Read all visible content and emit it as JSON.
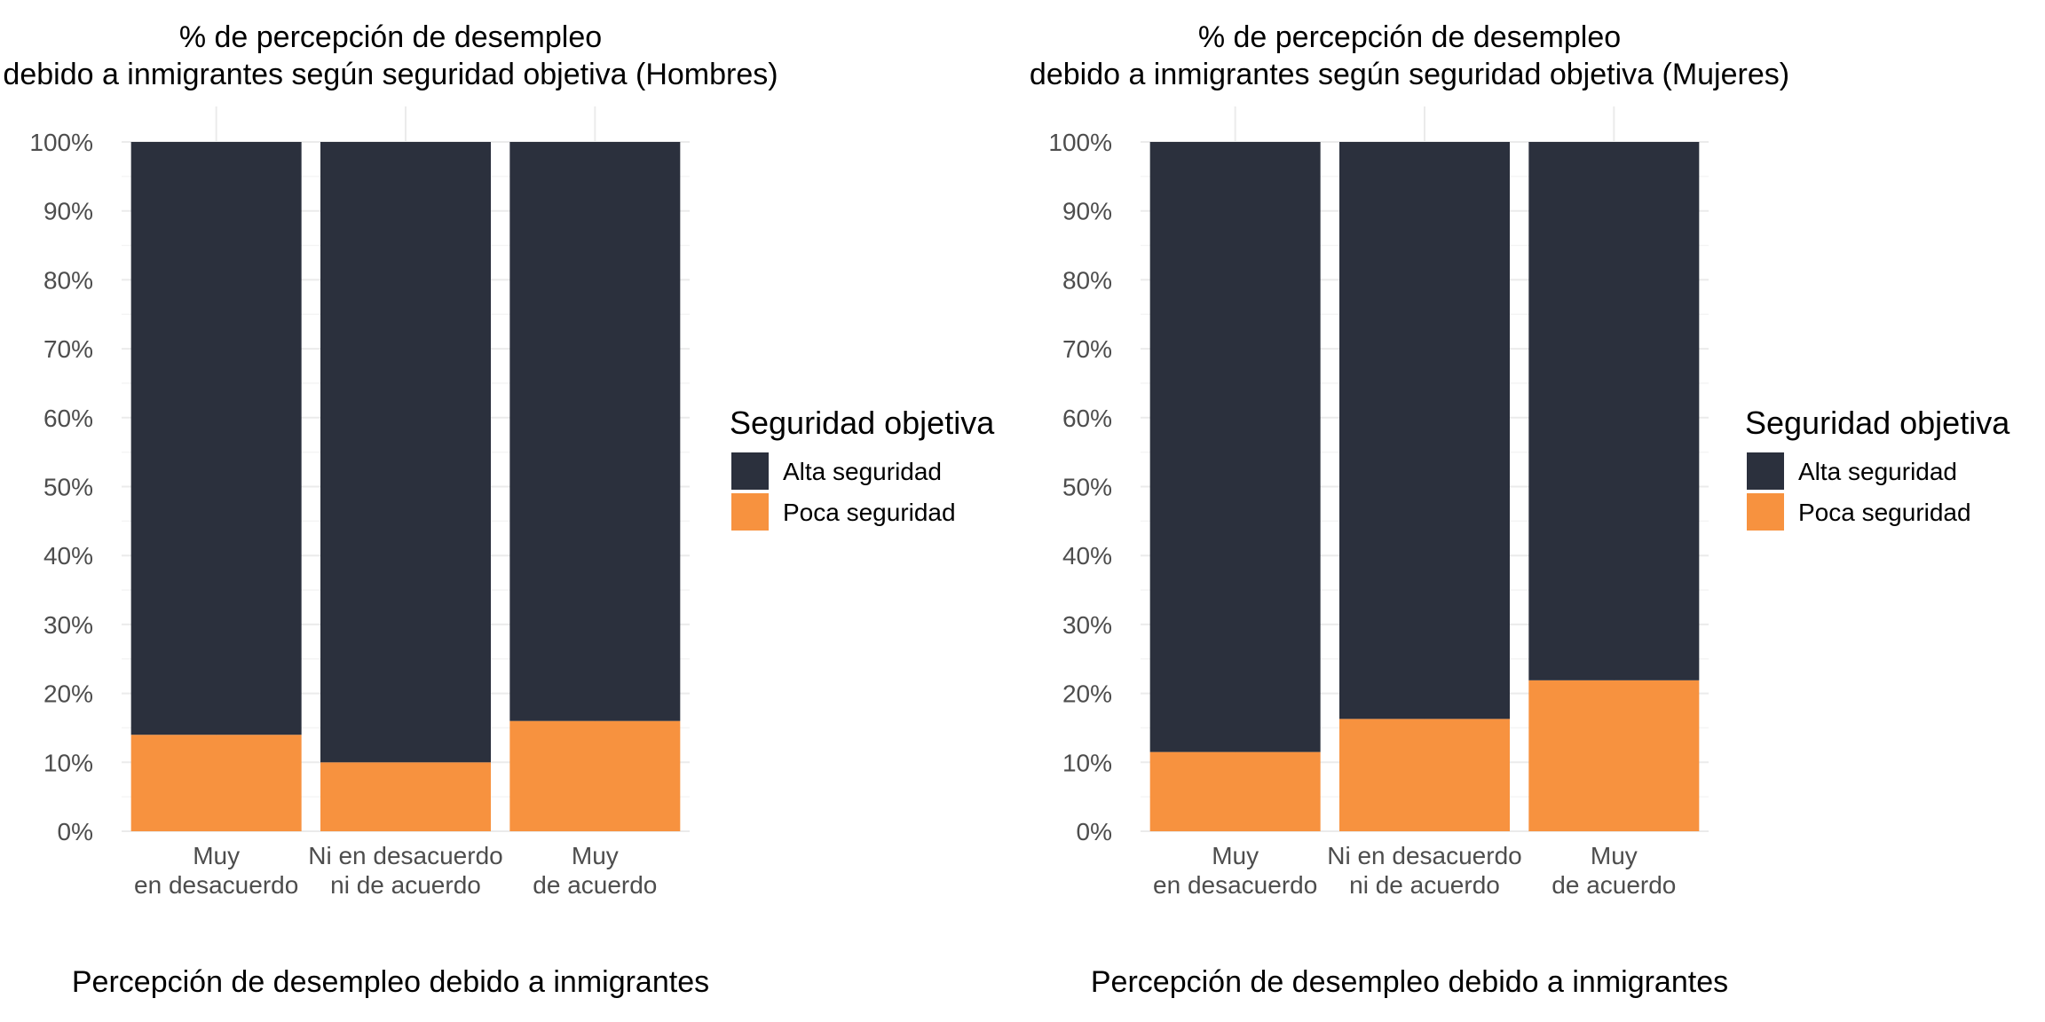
{
  "chart_data": [
    {
      "type": "bar",
      "stacked": true,
      "title_lines": [
        "% de percepción de desempleo",
        "debido a inmigrantes según seguridad objetiva (Hombres)"
      ],
      "xlabel": "Percepción de desempleo debido a inmigrantes",
      "ylabel": "",
      "categories": [
        [
          "Muy",
          "en desacuerdo"
        ],
        [
          "Ni en desacuerdo",
          "ni de acuerdo"
        ],
        [
          "Muy",
          "de acuerdo"
        ]
      ],
      "ylim": [
        0,
        100
      ],
      "yticks": [
        "0%",
        "10%",
        "20%",
        "30%",
        "40%",
        "50%",
        "60%",
        "70%",
        "80%",
        "90%",
        "100%"
      ],
      "series": [
        {
          "name": "Poca seguridad",
          "color": "#f7923f",
          "values": [
            14,
            10,
            16
          ]
        },
        {
          "name": "Alta seguridad",
          "color": "#2b303d",
          "values": [
            86,
            90,
            84
          ]
        }
      ],
      "legend_title": "Seguridad objetiva",
      "legend_items": [
        {
          "label": "Alta seguridad",
          "color": "#2b303d"
        },
        {
          "label": "Poca seguridad",
          "color": "#f7923f"
        }
      ],
      "legend_position": "right",
      "grid": true
    },
    {
      "type": "bar",
      "stacked": true,
      "title_lines": [
        "% de percepción de desempleo",
        "debido a inmigrantes según seguridad objetiva (Mujeres)"
      ],
      "xlabel": "Percepción de desempleo debido a inmigrantes",
      "ylabel": "",
      "categories": [
        [
          "Muy",
          "en desacuerdo"
        ],
        [
          "Ni en desacuerdo",
          "ni de acuerdo"
        ],
        [
          "Muy",
          "de acuerdo"
        ]
      ],
      "ylim": [
        0,
        100
      ],
      "yticks": [
        "0%",
        "10%",
        "20%",
        "30%",
        "40%",
        "50%",
        "60%",
        "70%",
        "80%",
        "90%",
        "100%"
      ],
      "series": [
        {
          "name": "Poca seguridad",
          "color": "#f7923f",
          "values": [
            11.5,
            16.3,
            21.9
          ]
        },
        {
          "name": "Alta seguridad",
          "color": "#2b303d",
          "values": [
            88.5,
            83.7,
            78.1
          ]
        }
      ],
      "legend_title": "Seguridad objetiva",
      "legend_items": [
        {
          "label": "Alta seguridad",
          "color": "#2b303d"
        },
        {
          "label": "Poca seguridad",
          "color": "#f7923f"
        }
      ],
      "legend_position": "right",
      "grid": true
    }
  ]
}
